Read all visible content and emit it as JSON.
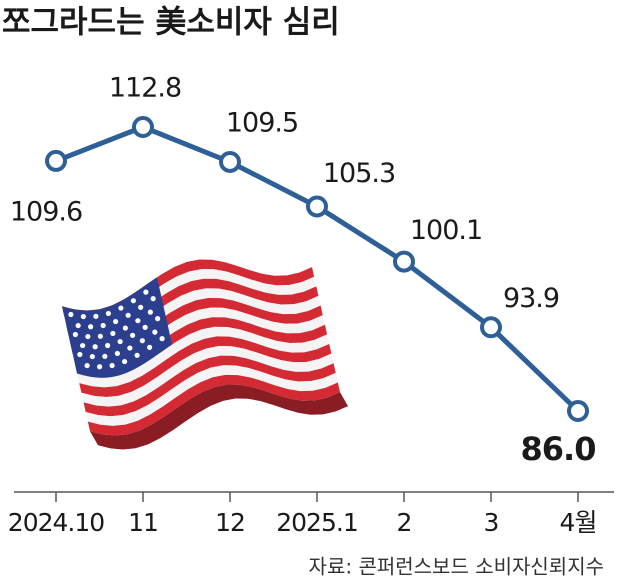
{
  "chart_data": {
    "type": "line",
    "title": "쪼그라드는 美소비자 심리",
    "categories": [
      "2024.10",
      "11",
      "12",
      "2025.1",
      "2",
      "3",
      "4월"
    ],
    "series": [
      {
        "name": "소비자신뢰지수",
        "color": "#2e5f98",
        "values": [
          109.6,
          112.8,
          109.5,
          105.3,
          100.1,
          93.9,
          86.0
        ],
        "value_labels": [
          "109.6",
          "112.8",
          "109.5",
          "105.3",
          "100.1",
          "93.9",
          "86.0"
        ]
      }
    ],
    "source": "자료: 콘퍼런스보드 소비자신뢰지수"
  }
}
